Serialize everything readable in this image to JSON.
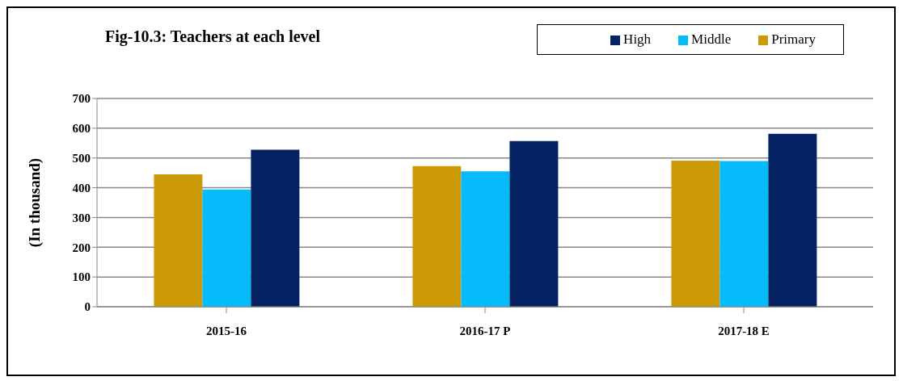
{
  "chart_data": {
    "type": "bar",
    "title": "Fig-10.3: Teachers at each level",
    "ylabel": "(In thousand)",
    "categories": [
      "2015-16",
      "2016-17 P",
      "2017-18 E"
    ],
    "series": [
      {
        "name": "Primary",
        "color": "#cc9a06",
        "values": [
          445,
          473,
          491
        ]
      },
      {
        "name": "Middle",
        "color": "#05bbf9",
        "values": [
          394,
          455,
          490
        ]
      },
      {
        "name": "High",
        "color": "#052363",
        "values": [
          528,
          557,
          581
        ]
      }
    ],
    "ylim": [
      0,
      700
    ],
    "yticks": [
      0,
      100,
      200,
      300,
      400,
      500,
      600,
      700
    ],
    "grid": "y",
    "legend": "top right"
  }
}
